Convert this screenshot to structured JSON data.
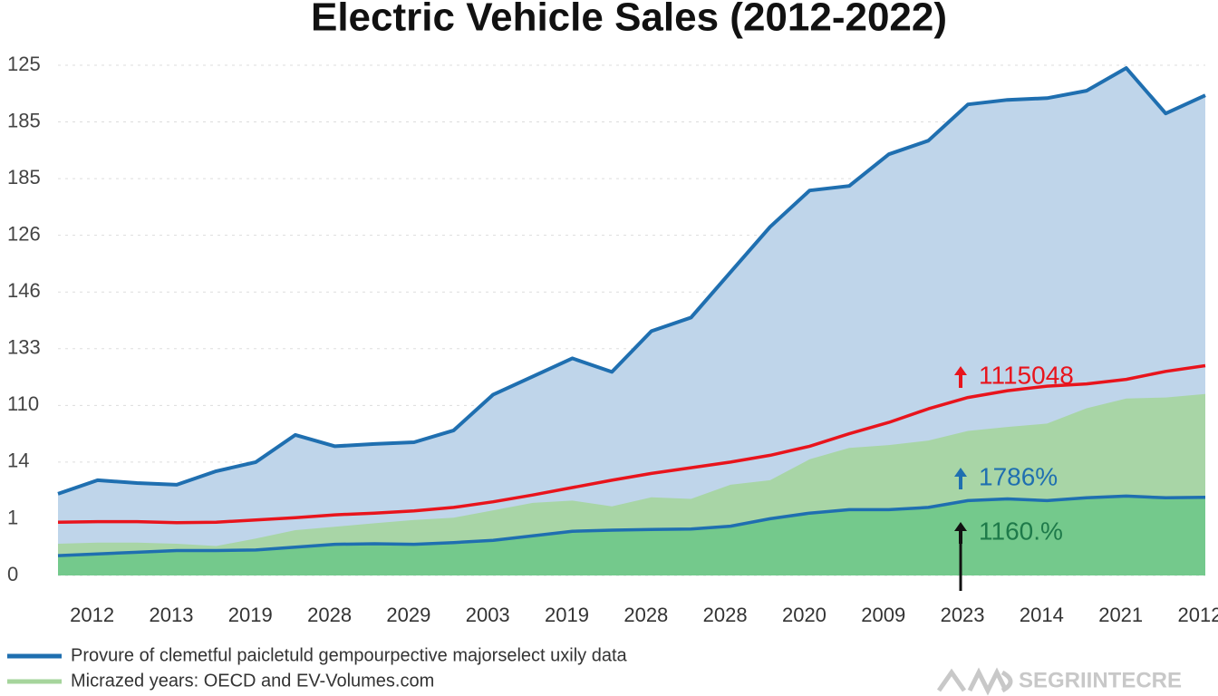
{
  "chart_data": {
    "type": "area",
    "title": "Electric Vehicle Sales (2012-2022)",
    "x": [
      0,
      1,
      2,
      3,
      4,
      5,
      6,
      7,
      8,
      9,
      10,
      11,
      12,
      13,
      14,
      15,
      16,
      17,
      18,
      19,
      20,
      21,
      22,
      23,
      24,
      25,
      26,
      27,
      28,
      29
    ],
    "xlim": [
      0,
      29
    ],
    "xticks": [
      {
        "value": 1,
        "label": "2012"
      },
      {
        "value": 3,
        "label": "2013"
      },
      {
        "value": 5,
        "label": "2019"
      },
      {
        "value": 7,
        "label": "2028"
      },
      {
        "value": 9,
        "label": "2029"
      },
      {
        "value": 11,
        "label": "2003"
      },
      {
        "value": 13,
        "label": "2019"
      },
      {
        "value": 15,
        "label": "2028"
      },
      {
        "value": 17,
        "label": "2028"
      },
      {
        "value": 19,
        "label": "2020"
      },
      {
        "value": 21,
        "label": "2009"
      },
      {
        "value": 23,
        "label": "2023"
      },
      {
        "value": 25,
        "label": "2014"
      },
      {
        "value": 27,
        "label": "2021"
      },
      {
        "value": 29,
        "label": "2012"
      }
    ],
    "ylim": [
      0,
      9
    ],
    "yticks": [
      0,
      1,
      {
        "value": 2,
        "label": "14"
      },
      {
        "value": 3,
        "label": "110"
      },
      {
        "value": 4,
        "label": "133"
      },
      {
        "value": 5,
        "label": "146"
      },
      {
        "value": 6,
        "label": "126"
      },
      {
        "value": 7,
        "label": "185"
      },
      {
        "value": 8,
        "label": "185"
      },
      {
        "value": 9,
        "label": "125"
      }
    ],
    "grid": true,
    "series": [
      {
        "name": "Provure of clemetful paicletuld gempourpective majorselect uxily data",
        "color": "#1f6fb0",
        "fill": "#bfd5ea",
        "values": [
          1.44,
          1.68,
          1.63,
          1.6,
          1.84,
          2.0,
          2.48,
          2.28,
          2.32,
          2.35,
          2.56,
          3.19,
          3.51,
          3.83,
          3.59,
          4.31,
          4.55,
          5.35,
          6.15,
          6.79,
          6.87,
          7.43,
          7.67,
          8.31,
          8.39,
          8.42,
          8.55,
          8.95,
          8.15,
          8.47
        ]
      },
      {
        "name": "Micrazed years: OECD and EV-Volumes.com",
        "color": "#a6d49c",
        "fill": "#a8d5a6",
        "values": [
          0.56,
          0.58,
          0.58,
          0.56,
          0.52,
          0.65,
          0.8,
          0.86,
          0.92,
          0.98,
          1.02,
          1.15,
          1.28,
          1.32,
          1.22,
          1.38,
          1.35,
          1.6,
          1.68,
          2.05,
          2.25,
          2.3,
          2.38,
          2.55,
          2.62,
          2.68,
          2.95,
          3.12,
          3.14,
          3.2
        ]
      },
      {
        "color": "#1f6fb0",
        "fill": "#74c98c",
        "values": [
          0.35,
          0.38,
          0.41,
          0.44,
          0.44,
          0.45,
          0.5,
          0.55,
          0.56,
          0.55,
          0.58,
          0.62,
          0.7,
          0.78,
          0.8,
          0.81,
          0.82,
          0.87,
          1.0,
          1.1,
          1.16,
          1.16,
          1.2,
          1.32,
          1.35,
          1.32,
          1.37,
          1.4,
          1.37,
          1.38
        ]
      },
      {
        "color": "#e8141c",
        "values": [
          0.94,
          0.95,
          0.95,
          0.93,
          0.94,
          0.98,
          1.02,
          1.07,
          1.1,
          1.14,
          1.2,
          1.3,
          1.42,
          1.55,
          1.68,
          1.8,
          1.9,
          2.0,
          2.12,
          2.28,
          2.5,
          2.7,
          2.94,
          3.14,
          3.26,
          3.34,
          3.38,
          3.46,
          3.6,
          3.7
        ]
      }
    ],
    "annotations": [
      {
        "text": "1115048",
        "color": "#e8141c"
      },
      {
        "text": "1786%",
        "color": "#1f6fb0"
      },
      {
        "text": "1160.%",
        "color": "#1e7a4a"
      }
    ],
    "watermark": "SEGRIINTECRE"
  }
}
